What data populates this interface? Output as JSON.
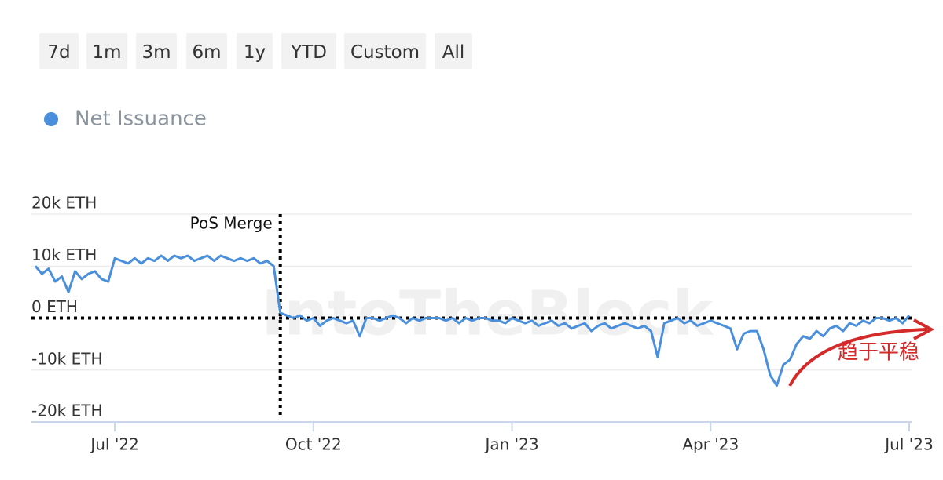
{
  "range_buttons": [
    "7d",
    "1m",
    "3m",
    "6m",
    "1y",
    "YTD",
    "Custom",
    "All"
  ],
  "chart_data": {
    "type": "line",
    "watermark": "IntoTheBlock",
    "categories": [
      null,
      null,
      null,
      null,
      null,
      null,
      null,
      null,
      null,
      null,
      null,
      null,
      "Jul '22",
      null,
      null,
      null,
      null,
      null,
      null,
      null,
      null,
      null,
      null,
      null,
      null,
      null,
      null,
      null,
      null,
      null,
      null,
      null,
      null,
      null,
      null,
      null,
      null,
      null,
      null,
      null,
      null,
      null,
      "Oct '22",
      null,
      null,
      null,
      null,
      null,
      null,
      null,
      null,
      null,
      null,
      null,
      null,
      null,
      null,
      null,
      null,
      null,
      null,
      null,
      null,
      null,
      null,
      null,
      null,
      null,
      null,
      null,
      null,
      null,
      "Jan '23",
      null,
      null,
      null,
      null,
      null,
      null,
      null,
      null,
      null,
      null,
      null,
      null,
      null,
      null,
      null,
      null,
      null,
      null,
      null,
      null,
      null,
      null,
      null,
      null,
      null,
      null,
      null,
      null,
      null,
      "Apr '23",
      null,
      null,
      null,
      null,
      null,
      null,
      null,
      null,
      null,
      null,
      null,
      null,
      null,
      null,
      null,
      null,
      null,
      null,
      null,
      null,
      null,
      null,
      null,
      null,
      null,
      null,
      null,
      null,
      null,
      "Jul '23"
    ],
    "series": [
      {
        "name": "Net Issuance",
        "color": "#4a8fdc",
        "values": [
          10000,
          8500,
          9500,
          7000,
          8000,
          5000,
          9000,
          7500,
          8500,
          9000,
          7500,
          7000,
          11500,
          11000,
          10500,
          11500,
          10500,
          11500,
          11000,
          12000,
          11000,
          12000,
          11500,
          12000,
          11000,
          11500,
          12000,
          11000,
          12000,
          11500,
          11000,
          11500,
          11000,
          11500,
          10500,
          11000,
          10000,
          1000,
          500,
          0,
          500,
          -500,
          0,
          -1500,
          -500,
          0,
          -500,
          -1000,
          -500,
          -3500,
          0,
          0,
          -500,
          0,
          500,
          0,
          -1000,
          0,
          -500,
          0,
          0,
          0,
          -500,
          0,
          -1000,
          0,
          -500,
          0,
          0,
          -500,
          -500,
          -1000,
          0,
          -500,
          -1000,
          -500,
          -1500,
          -1000,
          -500,
          -1500,
          -1000,
          -2000,
          -1500,
          -1000,
          -2500,
          -1500,
          -1000,
          -2000,
          -1500,
          -1000,
          -1500,
          -2000,
          -1500,
          -2500,
          -7500,
          -1000,
          -500,
          0,
          -1000,
          -500,
          -1500,
          -1000,
          -500,
          -1000,
          -1500,
          -2000,
          -6000,
          -3000,
          -2500,
          -2500,
          -6000,
          -11000,
          -13000,
          -9000,
          -8000,
          -5000,
          -3500,
          -4000,
          -2500,
          -3500,
          -2000,
          -1500,
          -2500,
          -1000,
          -1500,
          -500,
          -1000,
          0,
          0,
          -500,
          0,
          -1000,
          500
        ]
      }
    ],
    "ylim": [
      -20000,
      20000
    ],
    "yticks": [
      {
        "value": -20000,
        "label": "-20k ETH"
      },
      {
        "value": -10000,
        "label": "-10k ETH"
      },
      {
        "value": 0,
        "label": "0 ETH"
      },
      {
        "value": 10000,
        "label": "10k ETH"
      },
      {
        "value": 20000,
        "label": "20k ETH"
      }
    ],
    "grid": true,
    "hline": 0,
    "annotations": [
      {
        "text": "PoS Merge",
        "at": 37
      },
      {
        "text": "趋于平稳",
        "color": "#d42a2a"
      }
    ]
  }
}
